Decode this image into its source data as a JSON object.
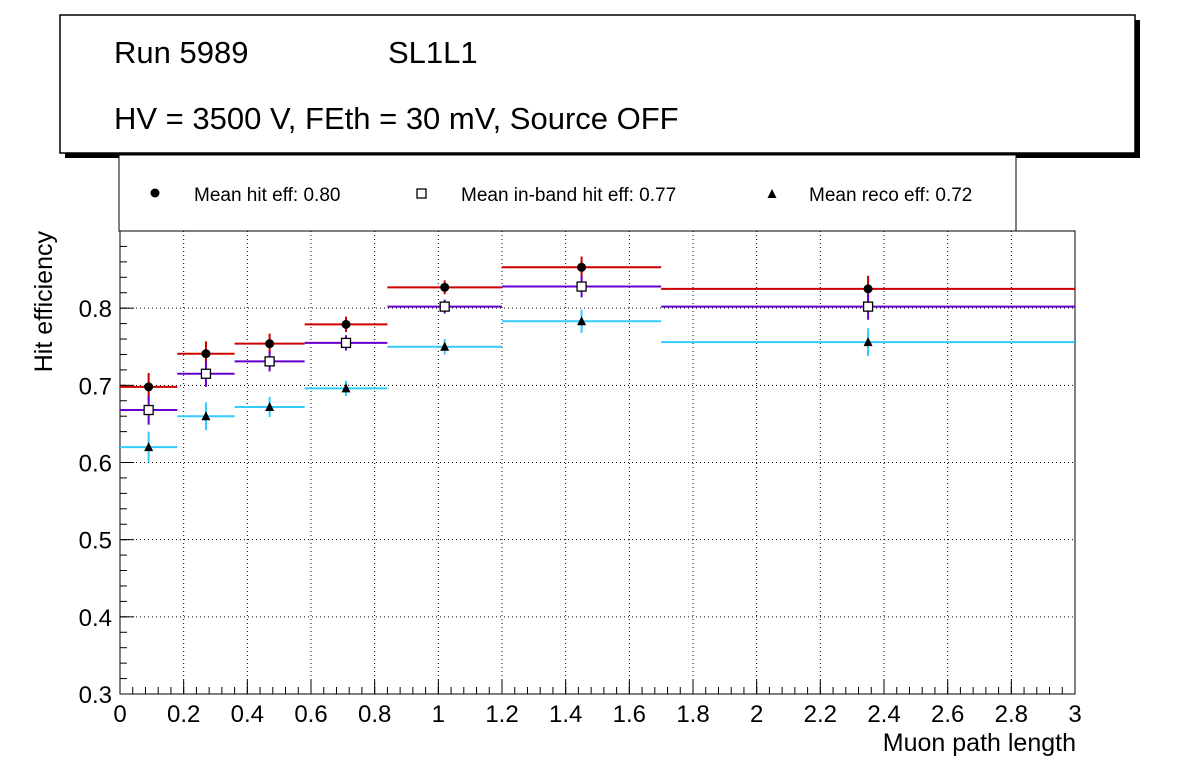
{
  "title_box": {
    "run": "Run 5989",
    "layer": "SL1L1",
    "conditions": "HV = 3500 V, FEth = 30 mV, Source OFF"
  },
  "colors": {
    "hit": "#cc0000",
    "inband": "#6600cc",
    "reco": "#33ccff",
    "marker": "#000000",
    "grid": "#000000"
  },
  "chart_data": {
    "type": "scatter",
    "xlabel": "Muon path length",
    "ylabel": "Hit efficiency",
    "xlim": [
      0,
      3
    ],
    "ylim": [
      0.3,
      0.9
    ],
    "xticks": [
      0,
      0.2,
      0.4,
      0.6,
      0.8,
      1,
      1.2,
      1.4,
      1.6,
      1.8,
      2,
      2.2,
      2.4,
      2.6,
      2.8,
      3
    ],
    "xtick_labels": [
      "0",
      "0.2",
      "0.4",
      "0.6",
      "0.8",
      "1",
      "1.2",
      "1.4",
      "1.6",
      "1.8",
      "2",
      "2.2",
      "2.4",
      "2.6",
      "2.8",
      "3"
    ],
    "yticks": [
      0.3,
      0.4,
      0.5,
      0.6,
      0.7,
      0.8
    ],
    "ytick_labels": [
      "0.3",
      "0.4",
      "0.5",
      "0.6",
      "0.7",
      "0.8"
    ],
    "grid": true,
    "legend_position": "top",
    "series": [
      {
        "name": "Mean hit  eff: 0.80",
        "key": "hit",
        "marker": "circle",
        "points": [
          {
            "x": 0.09,
            "xlo": 0.0,
            "xhi": 0.18,
            "y": 0.698,
            "err": 0.018
          },
          {
            "x": 0.27,
            "xlo": 0.18,
            "xhi": 0.36,
            "y": 0.741,
            "err": 0.016
          },
          {
            "x": 0.47,
            "xlo": 0.36,
            "xhi": 0.58,
            "y": 0.754,
            "err": 0.013
          },
          {
            "x": 0.71,
            "xlo": 0.58,
            "xhi": 0.84,
            "y": 0.779,
            "err": 0.01
          },
          {
            "x": 1.02,
            "xlo": 0.84,
            "xhi": 1.2,
            "y": 0.827,
            "err": 0.009
          },
          {
            "x": 1.45,
            "xlo": 1.2,
            "xhi": 1.7,
            "y": 0.853,
            "err": 0.014
          },
          {
            "x": 2.35,
            "xlo": 1.7,
            "xhi": 3.0,
            "y": 0.825,
            "err": 0.017
          }
        ]
      },
      {
        "name": "Mean in-band hit eff: 0.77",
        "key": "inband",
        "marker": "open-square",
        "points": [
          {
            "x": 0.09,
            "xlo": 0.0,
            "xhi": 0.18,
            "y": 0.668,
            "err": 0.019
          },
          {
            "x": 0.27,
            "xlo": 0.18,
            "xhi": 0.36,
            "y": 0.715,
            "err": 0.017
          },
          {
            "x": 0.47,
            "xlo": 0.36,
            "xhi": 0.58,
            "y": 0.731,
            "err": 0.013
          },
          {
            "x": 0.71,
            "xlo": 0.58,
            "xhi": 0.84,
            "y": 0.755,
            "err": 0.01
          },
          {
            "x": 1.02,
            "xlo": 0.84,
            "xhi": 1.2,
            "y": 0.802,
            "err": 0.009
          },
          {
            "x": 1.45,
            "xlo": 1.2,
            "xhi": 1.7,
            "y": 0.828,
            "err": 0.014
          },
          {
            "x": 2.35,
            "xlo": 1.7,
            "xhi": 3.0,
            "y": 0.802,
            "err": 0.017
          }
        ]
      },
      {
        "name": "Mean reco eff: 0.72",
        "key": "reco",
        "marker": "triangle",
        "points": [
          {
            "x": 0.09,
            "xlo": 0.0,
            "xhi": 0.18,
            "y": 0.62,
            "err": 0.02
          },
          {
            "x": 0.27,
            "xlo": 0.18,
            "xhi": 0.36,
            "y": 0.66,
            "err": 0.018
          },
          {
            "x": 0.47,
            "xlo": 0.36,
            "xhi": 0.58,
            "y": 0.672,
            "err": 0.013
          },
          {
            "x": 0.71,
            "xlo": 0.58,
            "xhi": 0.84,
            "y": 0.696,
            "err": 0.01
          },
          {
            "x": 1.02,
            "xlo": 0.84,
            "xhi": 1.2,
            "y": 0.75,
            "err": 0.01
          },
          {
            "x": 1.45,
            "xlo": 1.2,
            "xhi": 1.7,
            "y": 0.783,
            "err": 0.015
          },
          {
            "x": 2.35,
            "xlo": 1.7,
            "xhi": 3.0,
            "y": 0.756,
            "err": 0.018
          }
        ]
      }
    ]
  }
}
